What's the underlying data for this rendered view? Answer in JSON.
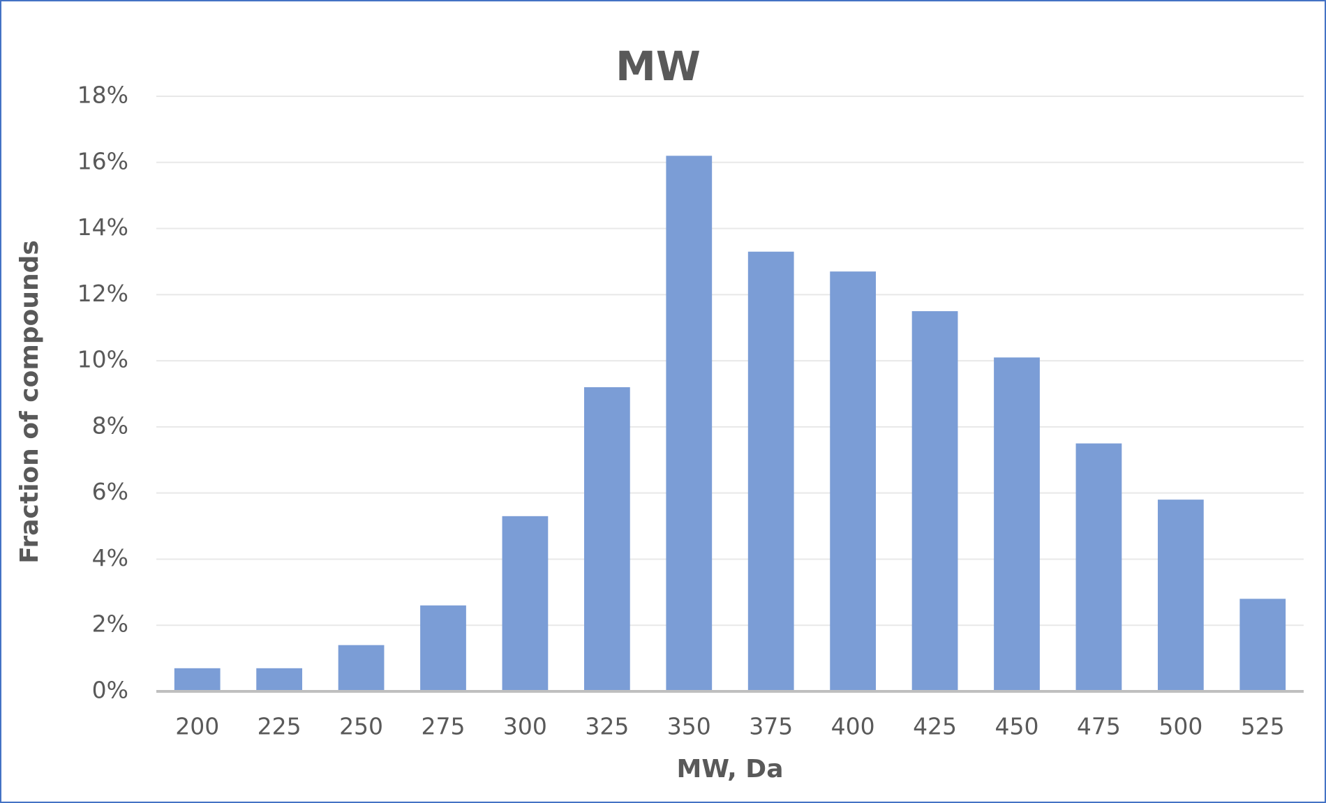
{
  "chart_data": {
    "type": "bar",
    "title": "MW",
    "x_label": "MW, Da",
    "y_label": "Fraction of compounds",
    "categories": [
      "200",
      "225",
      "250",
      "275",
      "300",
      "325",
      "350",
      "375",
      "400",
      "425",
      "450",
      "475",
      "500",
      "525"
    ],
    "values": [
      0.7,
      0.7,
      1.4,
      2.6,
      5.3,
      9.2,
      16.2,
      13.3,
      12.7,
      11.5,
      10.1,
      7.5,
      5.8,
      2.8
    ],
    "color": "#7b9dd6",
    "ylim": [
      0,
      18
    ],
    "yticks": [
      {
        "value": 0,
        "label": "0%"
      },
      {
        "value": 2,
        "label": "2%"
      },
      {
        "value": 4,
        "label": "4%"
      },
      {
        "value": 6,
        "label": "6%"
      },
      {
        "value": 8,
        "label": "8%"
      },
      {
        "value": 10,
        "label": "10%"
      },
      {
        "value": 12,
        "label": "12%"
      },
      {
        "value": 14,
        "label": "14%"
      },
      {
        "value": 16,
        "label": "16%"
      },
      {
        "value": 18,
        "label": "18%"
      }
    ],
    "grid": true
  }
}
